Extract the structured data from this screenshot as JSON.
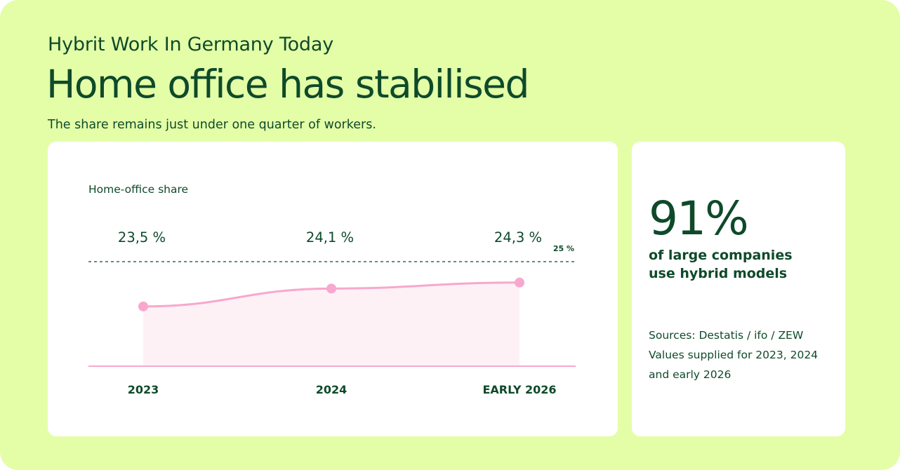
{
  "header": {
    "overline": "Hybrit Work In Germany Today",
    "title": "Home office has stabilised",
    "subtitle": "The share remains just under one quarter of workers."
  },
  "colors": {
    "background": "#e4fea8",
    "text": "#0e4a2a",
    "line": "#f7a8cc",
    "area": "#fdf1f6",
    "reference": "#0e4a2a"
  },
  "chart_data": {
    "type": "line",
    "title": "Home-office share",
    "categories": [
      "2023",
      "2024",
      "EARLY 2026"
    ],
    "series": [
      {
        "values": [
          23.5,
          24.1,
          24.3
        ]
      }
    ],
    "data_labels": [
      "23,5 %",
      "24,1 %",
      "24,3 %"
    ],
    "reference_line": {
      "value": 25,
      "label": "25 %",
      "style": "dashed"
    },
    "fill_area": true,
    "ylim": [
      21.5,
      25
    ],
    "grid": false,
    "xlabel": "",
    "ylabel": ""
  },
  "stat": {
    "value": "91%",
    "line1": "of large companies",
    "line2": "use hybrid models"
  },
  "sources": {
    "line1": "Sources: Destatis / ifo / ZEW",
    "line2": "Values supplied for 2023, 2024",
    "line3": "and early 2026"
  }
}
